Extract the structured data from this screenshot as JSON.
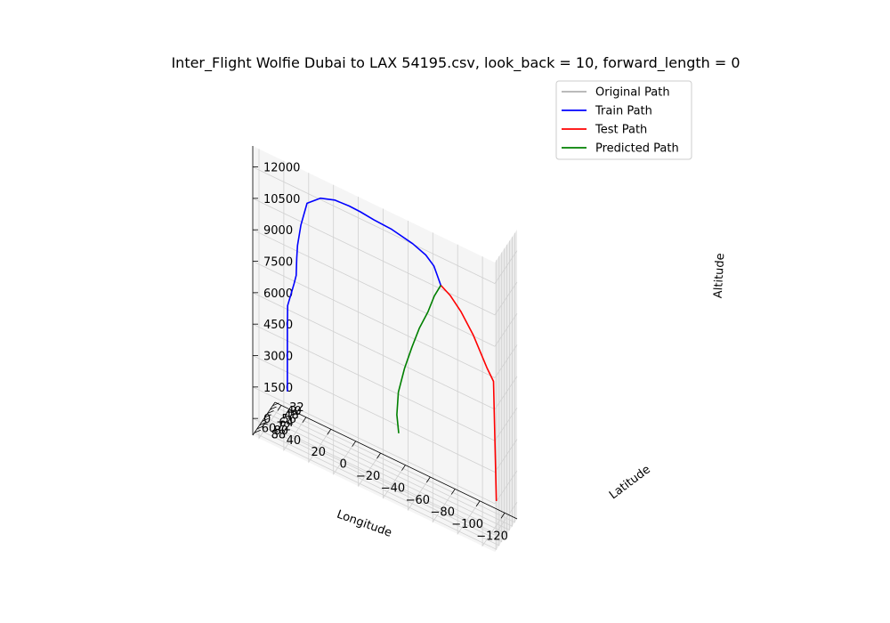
{
  "chart_data": {
    "type": "line",
    "projection": "3d",
    "title": "Inter_Flight Wolfie Dubai to LAX 54195.csv, look_back = 10, forward_length = 0",
    "xlabel": "Longitude",
    "ylabel": "Latitude",
    "zlabel": "Altitude",
    "x_ticks": [
      -120,
      -100,
      -80,
      -60,
      -40,
      -20,
      0,
      20,
      40,
      60
    ],
    "y_ticks": [
      32,
      40,
      48,
      56,
      64,
      72,
      80,
      88
    ],
    "z_ticks": [
      0,
      1500,
      3000,
      4500,
      6000,
      7500,
      9000,
      10500,
      12000
    ],
    "grid": true,
    "legend_position": "top-right",
    "series": [
      {
        "name": "Original Path",
        "color": "#b0b0b0",
        "points": []
      },
      {
        "name": "Train Path",
        "color": "#0000ff",
        "points": [
          [
            55,
            25,
            0
          ],
          [
            55,
            25,
            3000
          ],
          [
            54,
            28,
            4200
          ],
          [
            47,
            35,
            5600
          ],
          [
            44,
            40,
            6200
          ],
          [
            42,
            46,
            7200
          ],
          [
            40,
            51,
            8000
          ],
          [
            36,
            56,
            9200
          ],
          [
            30,
            60,
            10500
          ],
          [
            18,
            65,
            11200
          ],
          [
            5,
            70,
            11600
          ],
          [
            -8,
            75,
            11800
          ],
          [
            -18,
            79,
            11900
          ],
          [
            -30,
            83,
            11950
          ],
          [
            -45,
            86,
            12000
          ],
          [
            -62,
            86,
            11800
          ],
          [
            -72,
            84,
            11500
          ],
          [
            -78,
            82,
            11100
          ],
          [
            -80,
            80,
            10700
          ],
          [
            -82,
            76,
            10150
          ]
        ]
      },
      {
        "name": "Test Path",
        "color": "#ff0000",
        "points": [
          [
            -82,
            76,
            10150
          ],
          [
            -88,
            70,
            9700
          ],
          [
            -95,
            64,
            9000
          ],
          [
            -103,
            56,
            7900
          ],
          [
            -112,
            48,
            6400
          ],
          [
            -116,
            44,
            5800
          ],
          [
            -117,
            39,
            0
          ]
        ]
      },
      {
        "name": "Predicted Path",
        "color": "#008000",
        "points": [
          [
            -82,
            76,
            10150
          ],
          [
            -76,
            73,
            9400
          ],
          [
            -70,
            70,
            8400
          ],
          [
            -62,
            66,
            7300
          ],
          [
            -55,
            62,
            6100
          ],
          [
            -48,
            58,
            4800
          ],
          [
            -42,
            54,
            3400
          ],
          [
            -40,
            51,
            2200
          ],
          [
            -41,
            49,
            1300
          ]
        ]
      }
    ]
  }
}
